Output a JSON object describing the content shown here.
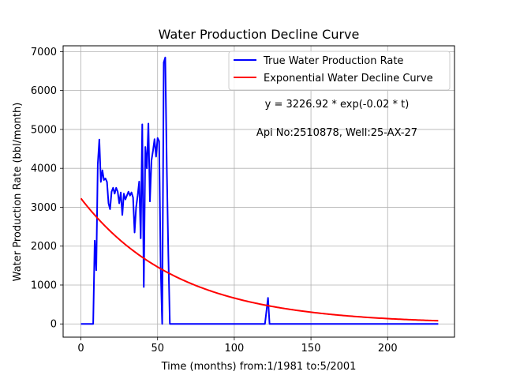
{
  "chart_data": {
    "type": "line",
    "title": "Water Production Decline Curve",
    "xlabel": "Time (months) from:1/1981 to:5/2001",
    "ylabel": "Water Production Rate (bbl/month)",
    "xlim": [
      -11.6,
      243.6
    ],
    "ylim": [
      -340,
      7150
    ],
    "xticks": [
      0,
      50,
      100,
      150,
      200
    ],
    "yticks": [
      0,
      1000,
      2000,
      3000,
      4000,
      5000,
      6000,
      7000
    ],
    "xtick_labels": [
      "0",
      "50",
      "100",
      "150",
      "200"
    ],
    "ytick_labels": [
      "0",
      "1000",
      "2000",
      "3000",
      "4000",
      "5000",
      "6000",
      "7000"
    ],
    "grid": true,
    "legend_position": "top-right",
    "annotations": [
      "y = 3226.92 * exp(-0.02 * t)",
      "Api No:2510878, Well:25-AX-27"
    ],
    "series": [
      {
        "name": "True Water Production Rate",
        "color": "#0000ff",
        "points": [
          [
            0,
            0
          ],
          [
            8,
            0
          ],
          [
            9,
            2140
          ],
          [
            10,
            1380
          ],
          [
            11,
            4100
          ],
          [
            12,
            4740
          ],
          [
            13,
            3650
          ],
          [
            14,
            3950
          ],
          [
            15,
            3700
          ],
          [
            16,
            3740
          ],
          [
            17,
            3650
          ],
          [
            18,
            3100
          ],
          [
            19,
            2950
          ],
          [
            20,
            3400
          ],
          [
            21,
            3500
          ],
          [
            22,
            3350
          ],
          [
            23,
            3500
          ],
          [
            24,
            3400
          ],
          [
            25,
            3100
          ],
          [
            26,
            3380
          ],
          [
            27,
            2800
          ],
          [
            28,
            3350
          ],
          [
            29,
            3200
          ],
          [
            30,
            3300
          ],
          [
            31,
            3400
          ],
          [
            32,
            3300
          ],
          [
            33,
            3380
          ],
          [
            34,
            3250
          ],
          [
            35,
            2350
          ],
          [
            36,
            3000
          ],
          [
            37,
            3300
          ],
          [
            38,
            3660
          ],
          [
            39,
            2200
          ],
          [
            40,
            5130
          ],
          [
            41,
            950
          ],
          [
            42,
            4550
          ],
          [
            43,
            4000
          ],
          [
            44,
            5150
          ],
          [
            45,
            3150
          ],
          [
            46,
            4200
          ],
          [
            47,
            4450
          ],
          [
            48,
            4750
          ],
          [
            49,
            4300
          ],
          [
            50,
            4780
          ],
          [
            51,
            4700
          ],
          [
            52,
            1500
          ],
          [
            53,
            0
          ],
          [
            54,
            6720
          ],
          [
            55,
            6850
          ],
          [
            56,
            4000
          ],
          [
            57,
            1800
          ],
          [
            58,
            0
          ],
          [
            120,
            0
          ],
          [
            122,
            670
          ],
          [
            123,
            0
          ],
          [
            233,
            0
          ]
        ]
      },
      {
        "name": "Exponential Water Decline Curve",
        "color": "#ff0000",
        "function": {
          "a": 3226.92,
          "b": -0.0158,
          "t_start": 0,
          "t_end": 233
        }
      }
    ]
  }
}
